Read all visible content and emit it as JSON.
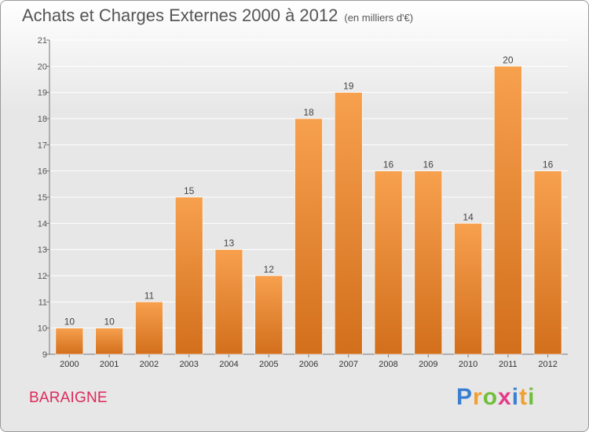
{
  "header": {
    "title": "Achats et Charges Externes 2000 à 2012",
    "unit": "(en milliers d'€)"
  },
  "footer": {
    "place": "BARAIGNE",
    "brand": "Proxiti",
    "brand_letters": [
      {
        "ch": "P",
        "color": "#3a7fd1"
      },
      {
        "ch": "r",
        "color": "#f0a030"
      },
      {
        "ch": "o",
        "color": "#6fbf3a"
      },
      {
        "ch": "x",
        "color": "#e33b8a"
      },
      {
        "ch": "i",
        "color": "#3a7fd1"
      },
      {
        "ch": "t",
        "color": "#f0a030"
      },
      {
        "ch": "i",
        "color": "#6fbf3a"
      }
    ]
  },
  "chart_data": {
    "type": "bar",
    "title": "Achats et Charges Externes 2000 à 2012",
    "subtitle": "(en milliers d'€)",
    "xlabel": "",
    "ylabel": "",
    "categories": [
      "2000",
      "2001",
      "2002",
      "2003",
      "2004",
      "2005",
      "2006",
      "2007",
      "2008",
      "2009",
      "2010",
      "2011",
      "2012"
    ],
    "values": [
      10,
      10,
      11,
      15,
      13,
      12,
      18,
      19,
      16,
      16,
      14,
      20,
      16
    ],
    "ylim": [
      9,
      21
    ],
    "yticks": [
      9,
      10,
      11,
      12,
      13,
      14,
      15,
      16,
      17,
      18,
      19,
      20,
      21
    ],
    "grid": true,
    "legend": "none",
    "colors": {
      "bar_top": "#f7a04e",
      "bar_bottom": "#d26f1c",
      "grid": "#ffffff",
      "axis": "#777777"
    }
  }
}
